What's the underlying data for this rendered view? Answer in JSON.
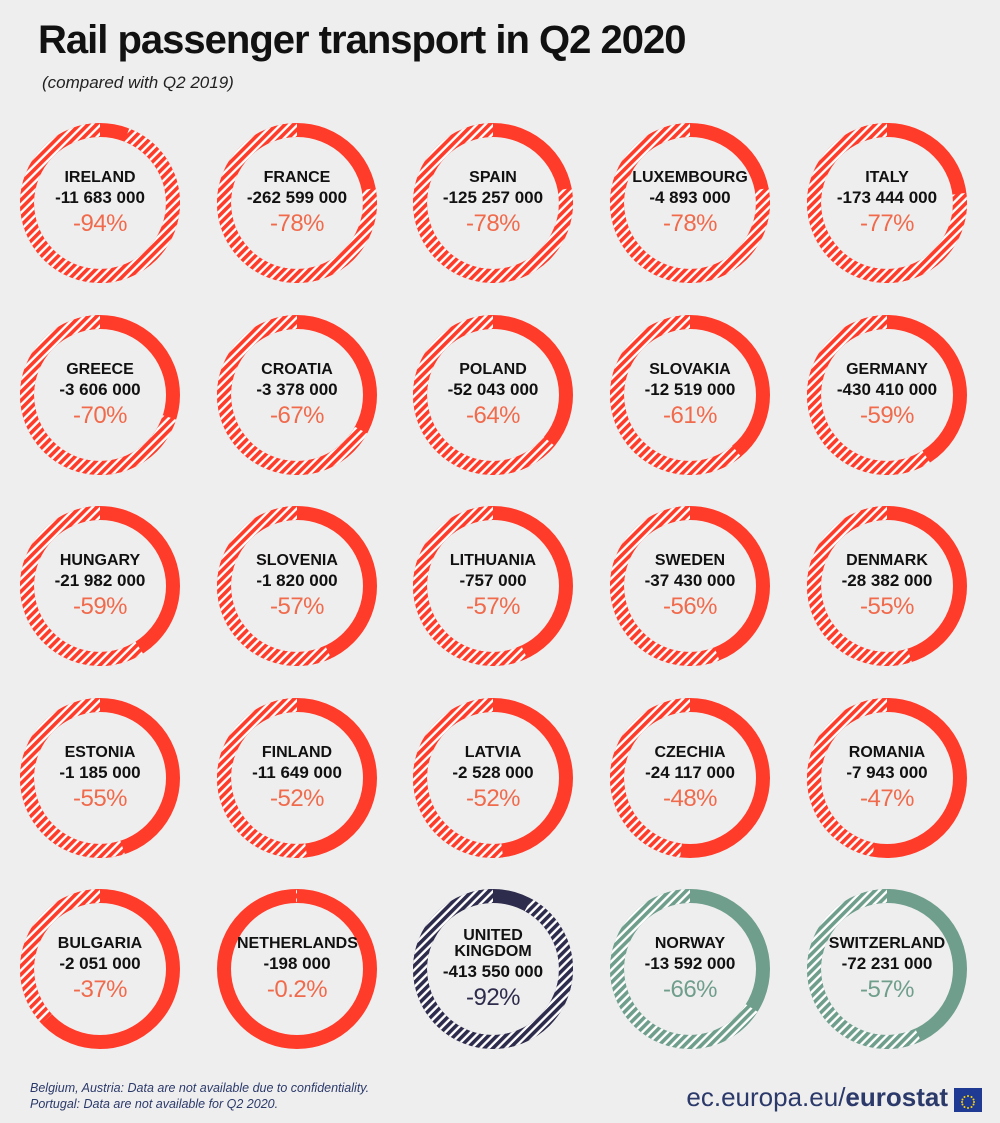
{
  "title": "Rail passenger transport in Q2 2020",
  "subtitle": "(compared with Q2 2019)",
  "colors": {
    "eu": "#ff3b2a",
    "uk": "#2e2c4c",
    "efta": "#6f9e8c",
    "pct_eu": "#f06a4c"
  },
  "chart_data": {
    "type": "donut",
    "title": "Rail passenger transport in Q2 2020",
    "subtitle": "(compared with Q2 2019)",
    "items": [
      {
        "country": "IRELAND",
        "value": "-11 683 000",
        "pct": "-94%",
        "change": -94,
        "group": "eu"
      },
      {
        "country": "FRANCE",
        "value": "-262 599 000",
        "pct": "-78%",
        "change": -78,
        "group": "eu"
      },
      {
        "country": "SPAIN",
        "value": "-125 257 000",
        "pct": "-78%",
        "change": -78,
        "group": "eu"
      },
      {
        "country": "LUXEMBOURG",
        "value": "-4 893 000",
        "pct": "-78%",
        "change": -78,
        "group": "eu"
      },
      {
        "country": "ITALY",
        "value": "-173 444 000",
        "pct": "-77%",
        "change": -77,
        "group": "eu"
      },
      {
        "country": "GREECE",
        "value": "-3 606 000",
        "pct": "-70%",
        "change": -70,
        "group": "eu"
      },
      {
        "country": "CROATIA",
        "value": "-3 378 000",
        "pct": "-67%",
        "change": -67,
        "group": "eu"
      },
      {
        "country": "POLAND",
        "value": "-52 043 000",
        "pct": "-64%",
        "change": -64,
        "group": "eu"
      },
      {
        "country": "SLOVAKIA",
        "value": "-12 519 000",
        "pct": "-61%",
        "change": -61,
        "group": "eu"
      },
      {
        "country": "GERMANY",
        "value": "-430 410 000",
        "pct": "-59%",
        "change": -59,
        "group": "eu"
      },
      {
        "country": "HUNGARY",
        "value": "-21 982 000",
        "pct": "-59%",
        "change": -59,
        "group": "eu"
      },
      {
        "country": "SLOVENIA",
        "value": "-1 820 000",
        "pct": "-57%",
        "change": -57,
        "group": "eu"
      },
      {
        "country": "LITHUANIA",
        "value": "-757 000",
        "pct": "-57%",
        "change": -57,
        "group": "eu"
      },
      {
        "country": "SWEDEN",
        "value": "-37 430 000",
        "pct": "-56%",
        "change": -56,
        "group": "eu"
      },
      {
        "country": "DENMARK",
        "value": "-28 382 000",
        "pct": "-55%",
        "change": -55,
        "group": "eu"
      },
      {
        "country": "ESTONIA",
        "value": "-1 185 000",
        "pct": "-55%",
        "change": -55,
        "group": "eu"
      },
      {
        "country": "FINLAND",
        "value": "-11 649 000",
        "pct": "-52%",
        "change": -52,
        "group": "eu"
      },
      {
        "country": "LATVIA",
        "value": "-2 528 000",
        "pct": "-52%",
        "change": -52,
        "group": "eu"
      },
      {
        "country": "CZECHIA",
        "value": "-24 117 000",
        "pct": "-48%",
        "change": -48,
        "group": "eu"
      },
      {
        "country": "ROMANIA",
        "value": "-7 943 000",
        "pct": "-47%",
        "change": -47,
        "group": "eu"
      },
      {
        "country": "BULGARIA",
        "value": "-2 051 000",
        "pct": "-37%",
        "change": -37,
        "group": "eu"
      },
      {
        "country": "NETHERLANDS",
        "value": "-198 000",
        "pct": "-0.2%",
        "change": -0.2,
        "group": "eu"
      },
      {
        "country": "UNITED KINGDOM",
        "value": "-413 550 000",
        "pct": "-92%",
        "change": -92,
        "group": "uk"
      },
      {
        "country": "NORWAY",
        "value": "-13 592 000",
        "pct": "-66%",
        "change": -66,
        "group": "efta"
      },
      {
        "country": "SWITZERLAND",
        "value": "-72 231 000",
        "pct": "-57%",
        "change": -57,
        "group": "efta"
      }
    ]
  },
  "footnotes": {
    "line1": "Belgium, Austria: Data are not available due to confidentiality.",
    "line2": "Portugal: Data are not available for Q2 2020."
  },
  "brand": {
    "site": "ec.europa.eu/",
    "name": "eurostat"
  }
}
